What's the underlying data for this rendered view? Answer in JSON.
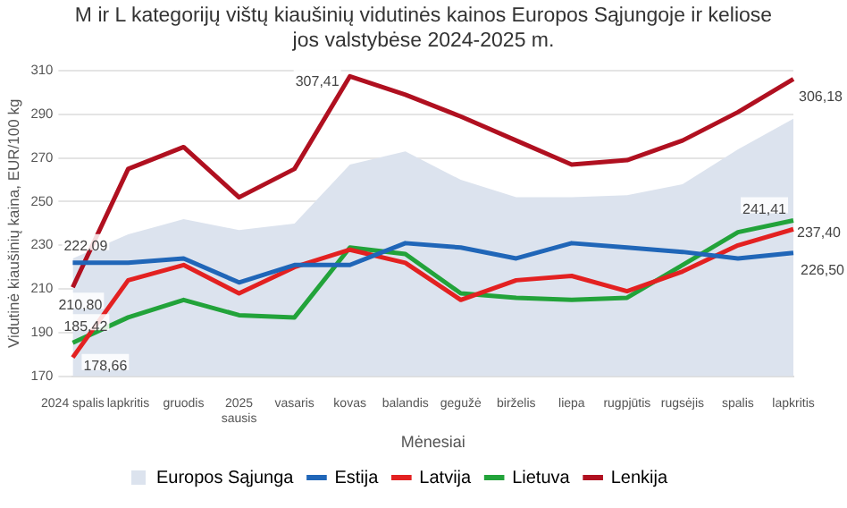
{
  "chart_data": {
    "type": "line",
    "title": "M ir L kategorijų vištų kiaušinių vidutinės kainos Europos Sąjungoje ir keliose jos valstybėse 2024-2025 m.",
    "xlabel": "Mėnesiai",
    "ylabel": "Vidutinė kiaušinių kaina, EUR/100 kg",
    "categories": [
      "2024 spalis",
      "lapkritis",
      "gruodis",
      "2025\nsausis",
      "vasaris",
      "kovas",
      "balandis",
      "gegužė",
      "birželis",
      "liepa",
      "rugpjūtis",
      "rugsėjis",
      "spalis",
      "lapkritis"
    ],
    "series": [
      {
        "name": "Europos Sąjunga",
        "type": "area",
        "color": "#dce3ee",
        "values": [
          224,
          235,
          242,
          237,
          240,
          267,
          273,
          260,
          252,
          252,
          253,
          258,
          274,
          288
        ]
      },
      {
        "name": "Estija",
        "color": "#2066b8",
        "values": [
          222.09,
          222,
          224,
          213,
          221,
          221,
          231,
          229,
          224,
          231,
          229,
          227,
          224,
          226.5
        ],
        "value_labels": [
          "222,09",
          null,
          null,
          null,
          null,
          null,
          null,
          null,
          null,
          null,
          null,
          null,
          null,
          "226,50"
        ]
      },
      {
        "name": "Latvija",
        "color": "#e32121",
        "values": [
          178.66,
          214,
          221,
          208,
          220,
          228,
          222,
          205,
          214,
          216,
          209,
          218,
          230,
          237.4
        ],
        "value_labels": [
          "178,66",
          null,
          null,
          null,
          null,
          null,
          null,
          null,
          null,
          null,
          null,
          null,
          null,
          "237,40"
        ]
      },
      {
        "name": "Lietuva",
        "color": "#22a33a",
        "values": [
          185.42,
          197,
          205,
          198,
          197,
          229,
          226,
          208,
          206,
          205,
          206,
          221,
          236,
          241.41
        ],
        "value_labels": [
          "185,42",
          null,
          null,
          null,
          null,
          null,
          null,
          null,
          null,
          null,
          null,
          null,
          null,
          "241,41"
        ]
      },
      {
        "name": "Lenkija",
        "color": "#b01020",
        "values": [
          210.8,
          265,
          275,
          252,
          265,
          307.41,
          299,
          289,
          278,
          267,
          269,
          278,
          291,
          306.18
        ],
        "value_labels": [
          "210,80",
          null,
          null,
          null,
          null,
          "307,41",
          null,
          null,
          null,
          null,
          null,
          null,
          null,
          "306,18"
        ]
      }
    ],
    "ylim": [
      170,
      310
    ],
    "yticks": [
      170,
      190,
      210,
      230,
      250,
      270,
      290,
      310
    ],
    "grid": "y",
    "legend": "bottom",
    "marker": "none",
    "line_style": "solid"
  }
}
